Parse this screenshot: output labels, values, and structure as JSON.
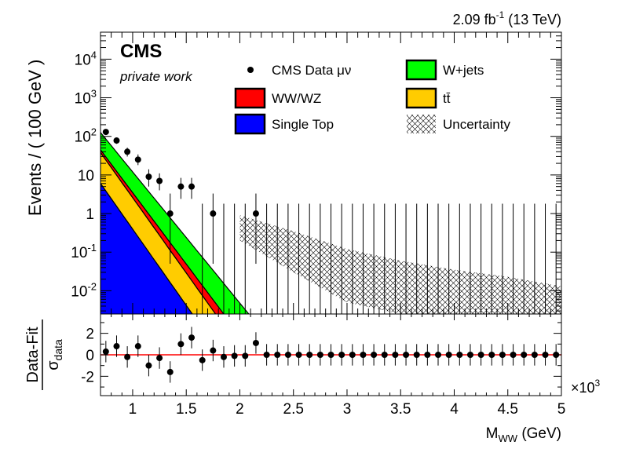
{
  "chart_data": {
    "type": "area",
    "lumi": "2.09 fb",
    "lumi_sup": "-1",
    "energy": "(13 TeV)",
    "experiment": "CMS",
    "subtitle": "private work",
    "top_panel": {
      "ylabel": "Events / ( 100 GeV )",
      "yscale": "log",
      "ylim": [
        0.0025,
        50000
      ],
      "yticks": [
        {
          "v": 0.01,
          "b": "10",
          "e": "-2"
        },
        {
          "v": 0.1,
          "b": "10",
          "e": "-1"
        },
        {
          "v": 1,
          "b": "1",
          "e": ""
        },
        {
          "v": 10,
          "b": "10",
          "e": ""
        },
        {
          "v": 100,
          "b": "10",
          "e": "2"
        },
        {
          "v": 1000,
          "b": "10",
          "e": "3"
        },
        {
          "v": 10000,
          "b": "10",
          "e": "4"
        }
      ]
    },
    "x_axis": {
      "label": "M",
      "label_sub": "WW",
      "label_unit": "(GeV)",
      "multiplier": "×10",
      "multiplier_exp": "3",
      "xlim": [
        0.7,
        5.0
      ],
      "ticks": [
        "1",
        "1.5",
        "2",
        "2.5",
        "3",
        "3.5",
        "4",
        "4.5",
        "5"
      ]
    },
    "legend": [
      {
        "label": "CMS Data μν",
        "kind": "marker",
        "color": "#000000"
      },
      {
        "label": "W+jets",
        "kind": "box",
        "color": "#00ff00"
      },
      {
        "label": "WW/WZ",
        "kind": "box",
        "color": "#ff0000"
      },
      {
        "label": "tt̄",
        "kind": "box",
        "color": "#ffcc00"
      },
      {
        "label": "Single Top",
        "kind": "box",
        "color": "#0000ff"
      },
      {
        "label": "Uncertainty",
        "kind": "hatch",
        "color": "#000000"
      }
    ],
    "stack": {
      "x": [
        0.7,
        5.0
      ],
      "single_top": {
        "log10_y0": 0.78,
        "log10_slope": -3.95
      },
      "ttbar_top": {
        "log10_y0": 1.58,
        "log10_slope": -3.9
      },
      "wwwz_top": {
        "log10_y0": 1.65,
        "log10_slope": -3.7
      },
      "wjets_top": {
        "log10_y0": 2.1,
        "log10_slope": -3.4
      },
      "uncertainty_band": [
        {
          "x": 2.0,
          "lo": 0.2,
          "hi": 0.9
        },
        {
          "x": 2.5,
          "lo": 0.03,
          "hi": 0.35
        },
        {
          "x": 3.0,
          "lo": 0.005,
          "hi": 0.12
        },
        {
          "x": 3.5,
          "lo": 0.0025,
          "hi": 0.06
        },
        {
          "x": 4.0,
          "lo": 0.0025,
          "hi": 0.035
        },
        {
          "x": 4.5,
          "lo": 0.0025,
          "hi": 0.023
        },
        {
          "x": 5.0,
          "lo": 0.0025,
          "hi": 0.013
        }
      ]
    },
    "data_points": [
      {
        "x": 0.75,
        "y": 130,
        "lo": 112,
        "hi": 150
      },
      {
        "x": 0.85,
        "y": 78,
        "lo": 64,
        "hi": 94
      },
      {
        "x": 0.95,
        "y": 40,
        "lo": 30,
        "hi": 51
      },
      {
        "x": 1.05,
        "y": 25,
        "lo": 18,
        "hi": 34
      },
      {
        "x": 1.15,
        "y": 9,
        "lo": 5,
        "hi": 14
      },
      {
        "x": 1.25,
        "y": 7,
        "lo": 4,
        "hi": 11
      },
      {
        "x": 1.35,
        "y": 1,
        "lo": 0.05,
        "hi": 3.3
      },
      {
        "x": 1.45,
        "y": 5,
        "lo": 2.4,
        "hi": 8.4
      },
      {
        "x": 1.55,
        "y": 5,
        "lo": 2.4,
        "hi": 8.4
      },
      {
        "x": 1.65,
        "y": 0,
        "lo": 0,
        "hi": 1.8
      },
      {
        "x": 1.75,
        "y": 1,
        "lo": 0.05,
        "hi": 3.3
      },
      {
        "x": 1.85,
        "y": 0,
        "lo": 0,
        "hi": 1.8
      },
      {
        "x": 1.95,
        "y": 0,
        "lo": 0,
        "hi": 1.8
      },
      {
        "x": 2.05,
        "y": 0,
        "lo": 0,
        "hi": 1.8
      },
      {
        "x": 2.15,
        "y": 1,
        "lo": 0.05,
        "hi": 3.3
      }
    ],
    "empty_bin_upper": 1.8,
    "empty_bins_x": [
      2.25,
      2.35,
      2.45,
      2.55,
      2.65,
      2.75,
      2.85,
      2.95,
      3.05,
      3.15,
      3.25,
      3.35,
      3.45,
      3.55,
      3.65,
      3.75,
      3.85,
      3.95,
      4.05,
      4.15,
      4.25,
      4.35,
      4.45,
      4.55,
      4.65,
      4.75,
      4.85,
      4.95
    ],
    "bottom_panel": {
      "ylabel": "Data-Fit",
      "ylabel_den": "σ",
      "ylabel_den_sub": "data",
      "ylim": [
        -3.8,
        3.8
      ],
      "yticks": [
        "2",
        "0",
        "-2"
      ],
      "line_color": "#ff0000",
      "pulls": [
        {
          "x": 0.75,
          "y": 0.3
        },
        {
          "x": 0.85,
          "y": 0.8
        },
        {
          "x": 0.95,
          "y": -0.2
        },
        {
          "x": 1.05,
          "y": 0.8
        },
        {
          "x": 1.15,
          "y": -1.0
        },
        {
          "x": 1.25,
          "y": -0.3
        },
        {
          "x": 1.35,
          "y": -1.6
        },
        {
          "x": 1.45,
          "y": 1.0
        },
        {
          "x": 1.55,
          "y": 1.6
        },
        {
          "x": 1.65,
          "y": -0.5
        },
        {
          "x": 1.75,
          "y": 0.4
        },
        {
          "x": 1.85,
          "y": -0.2
        },
        {
          "x": 1.95,
          "y": -0.1
        },
        {
          "x": 2.05,
          "y": -0.1
        },
        {
          "x": 2.15,
          "y": 1.1
        }
      ]
    }
  }
}
